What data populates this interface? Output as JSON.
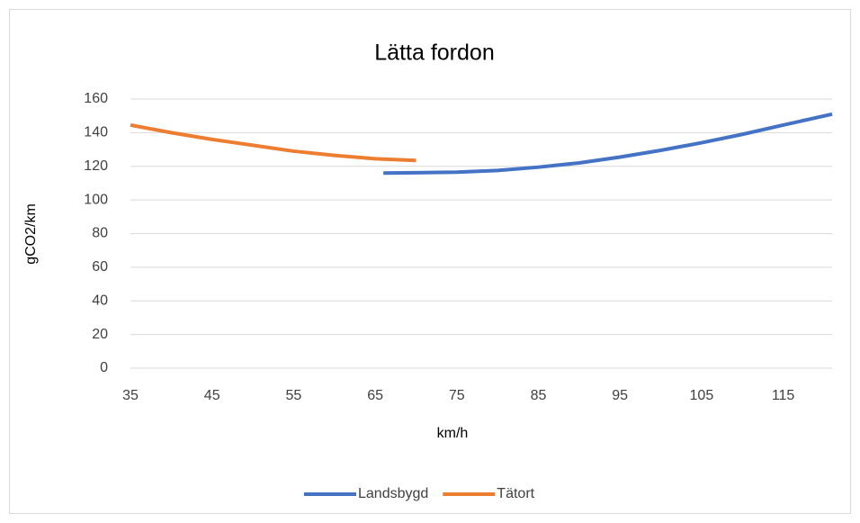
{
  "chart_data": {
    "type": "line",
    "title": "Lätta fordon",
    "x_label": "km/h",
    "y_label": "gCO2/km",
    "xlim": [
      35,
      121
    ],
    "xticks": [
      35,
      45,
      55,
      65,
      75,
      85,
      95,
      105,
      115
    ],
    "ylim": [
      0,
      160
    ],
    "yticks": [
      0,
      20,
      40,
      60,
      80,
      100,
      120,
      140,
      160
    ],
    "grid": true,
    "legend": "bottom",
    "series": [
      {
        "name": "Landsbygd",
        "color": "#4472c4",
        "x": [
          66,
          70,
          75,
          80,
          85,
          90,
          95,
          100,
          105,
          110,
          115,
          121
        ],
        "values": [
          116,
          116.2,
          116.5,
          117.5,
          119.5,
          122,
          125.5,
          129.5,
          134,
          139,
          144.5,
          151
        ]
      },
      {
        "name": "Tätort",
        "color": "#ed7d31",
        "x": [
          35,
          40,
          45,
          50,
          55,
          60,
          65,
          70
        ],
        "values": [
          144.5,
          140,
          136,
          132.5,
          129,
          126.5,
          124.5,
          123.5
        ]
      }
    ]
  }
}
